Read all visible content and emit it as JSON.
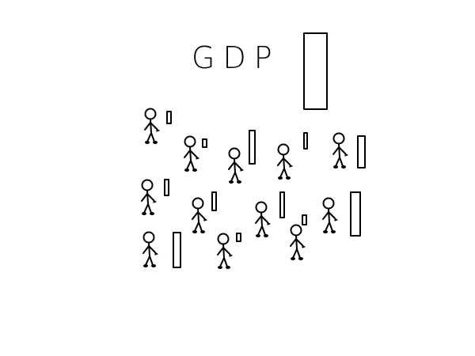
{
  "title": "GDP"
}
